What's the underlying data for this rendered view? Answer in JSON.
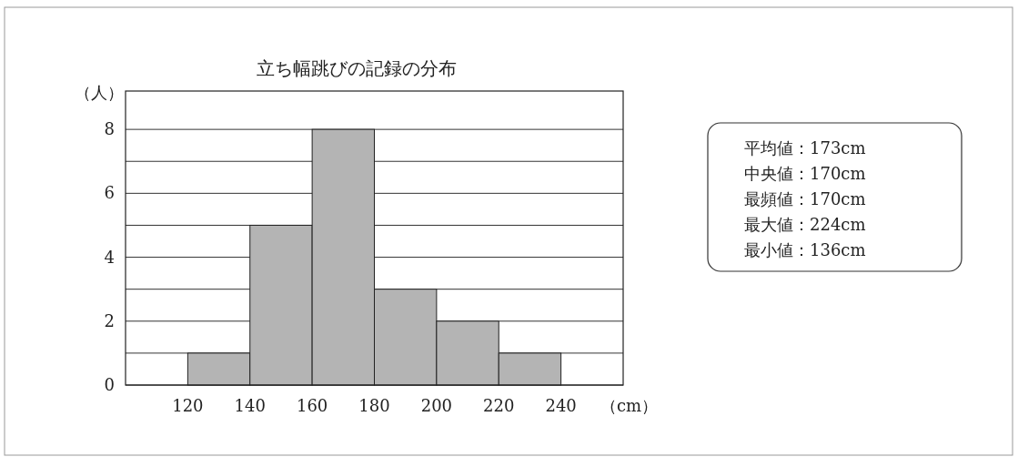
{
  "chart_data": [
    {
      "type": "histogram",
      "title": "立ち幅跳びの記録の分布",
      "xlabel": "（cm）",
      "ylabel": "（人）",
      "bins": [
        120,
        140,
        160,
        180,
        200,
        220,
        240
      ],
      "values": [
        1,
        5,
        8,
        3,
        2,
        1
      ],
      "color": "#b4b4b4",
      "xlim": [
        100,
        260
      ],
      "xticks": [
        120,
        140,
        160,
        180,
        200,
        220,
        240
      ],
      "ylim": [
        0,
        9.2
      ],
      "yticks": [
        0,
        {
          "value": 1,
          "label": null
        },
        2,
        {
          "value": 3,
          "label": null
        },
        4,
        {
          "value": 5,
          "label": null
        },
        6,
        {
          "value": 7,
          "label": null
        },
        8
      ],
      "grid": "y"
    },
    {
      "type": "other",
      "annotations": [
        "平均値：173cm",
        "中央値：170cm",
        "最頻値：170cm",
        "最大値：224cm",
        "最小値：136cm"
      ]
    }
  ]
}
